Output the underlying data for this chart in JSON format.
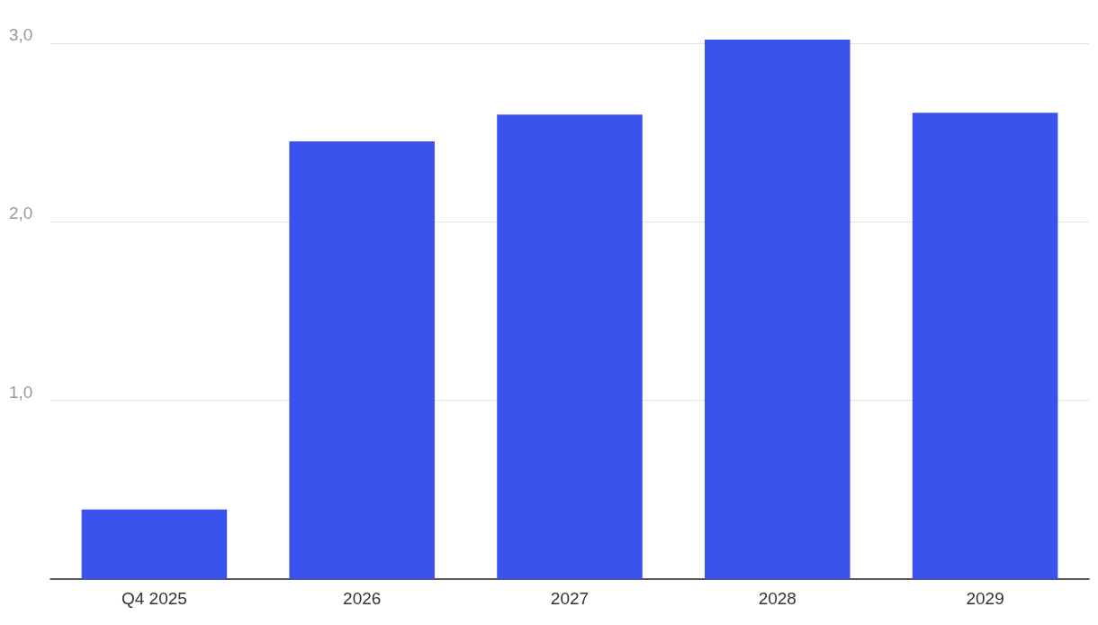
{
  "chart_data": {
    "type": "bar",
    "categories": [
      "Q4 2025",
      "2026",
      "2027",
      "2028",
      "2029"
    ],
    "values": [
      0.39,
      2.45,
      2.6,
      3.02,
      2.61
    ],
    "color": "#3b53ed",
    "ylim": [
      0,
      3.02
    ],
    "yticks": [
      {
        "value": 1,
        "label": "1,0"
      },
      {
        "value": 2,
        "label": "2,0"
      },
      {
        "value": 3,
        "label": "3,0"
      }
    ],
    "grid": "y"
  }
}
